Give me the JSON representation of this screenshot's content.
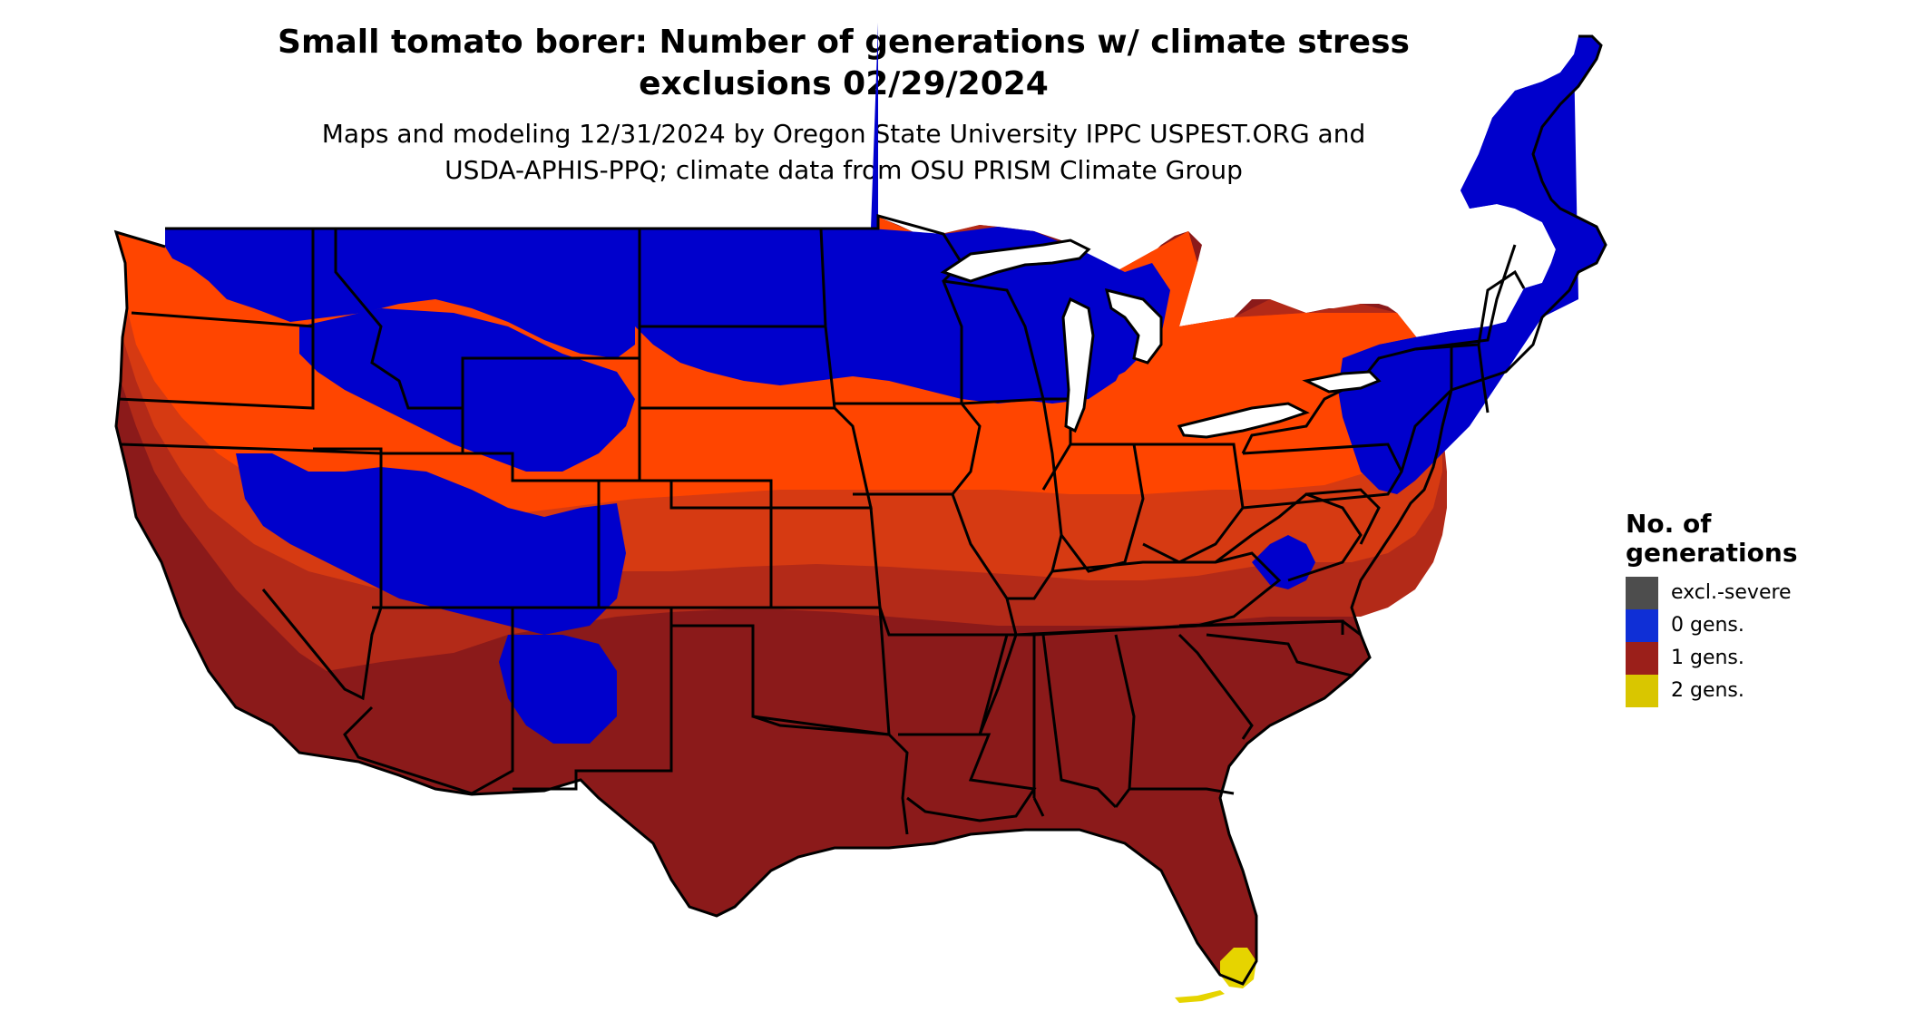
{
  "title_lines": [
    "Small tomato borer: Number of generations w/ climate stress",
    "exclusions 02/29/2024"
  ],
  "subtitle_lines": [
    "Maps and modeling 12/31/2024 by Oregon State University IPPC USPEST.ORG and",
    "USDA-APHIS-PPQ; climate data from OSU PRISM Climate Group"
  ],
  "legend": {
    "title_lines": [
      "No. of",
      "generations"
    ],
    "items": [
      {
        "label": "excl.-severe",
        "color": "#4d4d4d"
      },
      {
        "label": "0 gens.",
        "color": "#0f2fd6"
      },
      {
        "label": "1 gens.",
        "color": "#9b1f1a"
      },
      {
        "label": "2 gens.",
        "color": "#d9c600"
      }
    ]
  },
  "map_colors": {
    "zero_generations": "#0000cc",
    "partial_low": "#ff4500",
    "partial_mid": "#d63a12",
    "partial_high": "#b32a18",
    "one_generation": "#8b1a1a",
    "two_generations": "#e6d400",
    "borders": "#000000"
  }
}
